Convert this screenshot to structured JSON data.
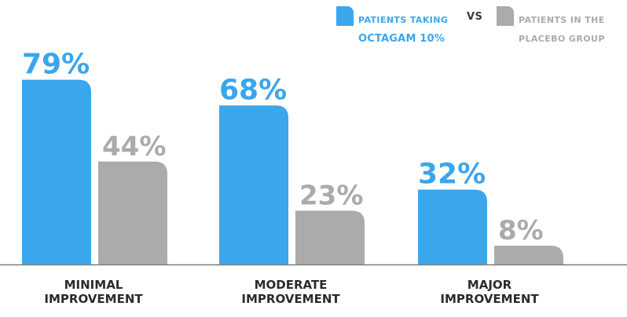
{
  "colors": {
    "octagam": "#3aa6ec",
    "placebo": "#ababab",
    "axis": "#7d7d7d",
    "text_dark": "#2b2b2b"
  },
  "legend": {
    "octagam_line1": "PATIENTS TAKING",
    "octagam_line2": "OCTAGAM 10%",
    "vs": "VS",
    "placebo_line1": "PATIENTS IN THE",
    "placebo_line2": "PLACEBO GROUP"
  },
  "chart_data": {
    "type": "bar",
    "categories": [
      [
        "MINIMAL",
        "IMPROVEMENT"
      ],
      [
        "MODERATE",
        "IMPROVEMENT"
      ],
      [
        "MAJOR",
        "IMPROVEMENT"
      ]
    ],
    "series": [
      {
        "name": "PATIENTS TAKING OCTAGAM 10%",
        "values": [
          79,
          68,
          32
        ],
        "labels": [
          "79%",
          "68%",
          "32%"
        ]
      },
      {
        "name": "PATIENTS IN THE PLACEBO GROUP",
        "values": [
          44,
          23,
          8
        ],
        "labels": [
          "44%",
          "23%",
          "8%"
        ]
      }
    ],
    "ylim": [
      0,
      100
    ],
    "legend_position": "top-right",
    "grid": false
  }
}
